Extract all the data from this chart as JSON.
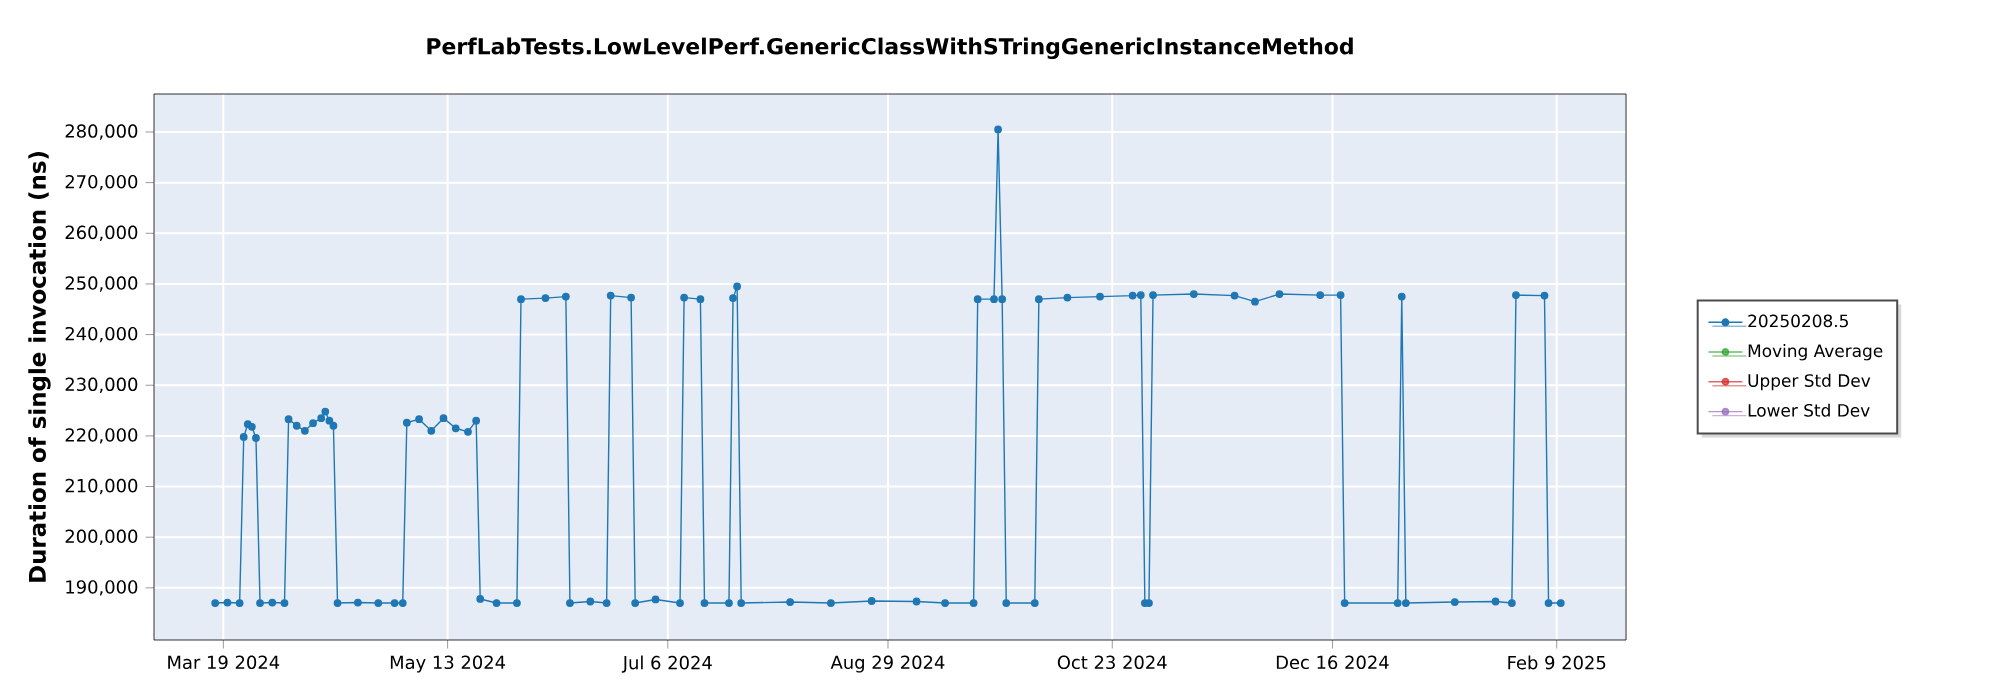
{
  "chart_data": {
    "type": "line",
    "title": "PerfLabTests.LowLevelPerf.GenericClassWithSTringGenericInstanceMethod",
    "ylabel": "Duration of single invocation (ns)",
    "x": [
      "2024-03-17",
      "2024-03-20",
      "2024-03-23",
      "2024-03-24",
      "2024-03-25",
      "2024-03-26",
      "2024-03-27",
      "2024-03-28",
      "2024-03-31",
      "2024-04-03",
      "2024-04-04",
      "2024-04-06",
      "2024-04-08",
      "2024-04-10",
      "2024-04-12",
      "2024-04-13",
      "2024-04-14",
      "2024-04-15",
      "2024-04-16",
      "2024-04-21",
      "2024-04-26",
      "2024-04-30",
      "2024-05-02",
      "2024-05-03",
      "2024-05-06",
      "2024-05-09",
      "2024-05-12",
      "2024-05-15",
      "2024-05-18",
      "2024-05-20",
      "2024-05-21",
      "2024-05-25",
      "2024-05-30",
      "2024-05-31",
      "2024-06-06",
      "2024-06-11",
      "2024-06-12",
      "2024-06-17",
      "2024-06-21",
      "2024-06-22",
      "2024-06-27",
      "2024-06-28",
      "2024-07-03",
      "2024-07-09",
      "2024-07-10",
      "2024-07-14",
      "2024-07-15",
      "2024-07-21",
      "2024-07-22",
      "2024-07-23",
      "2024-07-24",
      "2024-08-05",
      "2024-08-15",
      "2024-08-25",
      "2024-09-05",
      "2024-09-12",
      "2024-09-19",
      "2024-09-20",
      "2024-09-24",
      "2024-09-25",
      "2024-09-26",
      "2024-09-27",
      "2024-10-04",
      "2024-10-05",
      "2024-10-12",
      "2024-10-20",
      "2024-10-28",
      "2024-10-30",
      "2024-10-31",
      "2024-11-01",
      "2024-11-02",
      "2024-11-12",
      "2024-11-22",
      "2024-11-27",
      "2024-12-03",
      "2024-12-13",
      "2024-12-18",
      "2024-12-19",
      "2025-01-01",
      "2025-01-02",
      "2025-01-03",
      "2025-01-15",
      "2025-01-25",
      "2025-01-29",
      "2025-01-30",
      "2025-02-06",
      "2025-02-07",
      "2025-02-10"
    ],
    "series": [
      {
        "name": "20250208.5",
        "color": "#1f77b4",
        "values": [
          187000,
          187100,
          187000,
          219800,
          222300,
          221800,
          219600,
          187000,
          187100,
          187000,
          223300,
          222000,
          221000,
          222500,
          223500,
          224800,
          223000,
          222000,
          187000,
          187100,
          187000,
          187000,
          187000,
          222600,
          223300,
          221000,
          223500,
          221500,
          220800,
          223000,
          187800,
          187000,
          187000,
          247000,
          247200,
          247500,
          187000,
          187300,
          187000,
          247700,
          247300,
          187000,
          187700,
          187000,
          247300,
          247000,
          187000,
          187000,
          247200,
          249500,
          187000,
          187200,
          187000,
          187400,
          187300,
          187000,
          187000,
          247000,
          247000,
          280500,
          247000,
          187000,
          187000,
          247000,
          247300,
          247500,
          247700,
          247800,
          187000,
          187000,
          247800,
          248000,
          247700,
          246500,
          248000,
          247800,
          247800,
          187000,
          187000,
          247500,
          187000,
          187200,
          187300,
          187000,
          247800,
          247700,
          187000,
          187000
        ]
      },
      {
        "name": "Moving Average",
        "color": "#2ca02c",
        "values": [
          null,
          null,
          null,
          null,
          null,
          null,
          null,
          null,
          null,
          null,
          null,
          null,
          null,
          null,
          null,
          null,
          null,
          null,
          null,
          null,
          null,
          null,
          null,
          null,
          null,
          null,
          null,
          null,
          null,
          null,
          null,
          null,
          null,
          null,
          null,
          null,
          null,
          null,
          null,
          null,
          null,
          null,
          null,
          null,
          null,
          null,
          null,
          null,
          null,
          null,
          null,
          null,
          null,
          null,
          null,
          null,
          null,
          null,
          null,
          null,
          null,
          null,
          null,
          null,
          null,
          null,
          null,
          null,
          null,
          null,
          null,
          null,
          null,
          null,
          null,
          null,
          null,
          null,
          null,
          null,
          null,
          null,
          null,
          null,
          null,
          null,
          null,
          null
        ]
      },
      {
        "name": "Upper Std Dev",
        "color": "#d62728",
        "values": [
          null,
          null,
          null,
          null,
          null,
          null,
          null,
          null,
          null,
          null,
          null,
          null,
          null,
          null,
          null,
          null,
          null,
          null,
          null,
          null,
          null,
          null,
          null,
          null,
          null,
          null,
          null,
          null,
          null,
          null,
          null,
          null,
          null,
          null,
          null,
          null,
          null,
          null,
          null,
          null,
          null,
          null,
          null,
          null,
          null,
          null,
          null,
          null,
          null,
          null,
          null,
          null,
          null,
          null,
          null,
          null,
          null,
          null,
          null,
          null,
          null,
          null,
          null,
          null,
          null,
          null,
          null,
          null,
          null,
          null,
          null,
          null,
          null,
          null,
          null,
          null,
          null,
          null,
          null,
          null,
          null,
          null,
          null,
          null,
          null,
          null,
          null,
          null
        ]
      },
      {
        "name": "Lower Std Dev",
        "color": "#9467bd",
        "values": [
          null,
          null,
          null,
          null,
          null,
          null,
          null,
          null,
          null,
          null,
          null,
          null,
          null,
          null,
          null,
          null,
          null,
          null,
          null,
          null,
          null,
          null,
          null,
          null,
          null,
          null,
          null,
          null,
          null,
          null,
          null,
          null,
          null,
          null,
          null,
          null,
          null,
          null,
          null,
          null,
          null,
          null,
          null,
          null,
          null,
          null,
          null,
          null,
          null,
          null,
          null,
          null,
          null,
          null,
          null,
          null,
          null,
          null,
          null,
          null,
          null,
          null,
          null,
          null,
          null,
          null,
          null,
          null,
          null,
          null,
          null,
          null,
          null,
          null,
          null,
          null,
          null,
          null,
          null,
          null,
          null,
          null,
          null,
          null,
          null,
          null,
          null,
          null
        ]
      }
    ],
    "xlim": [
      "2024-03-02",
      "2025-02-26"
    ],
    "xticks": [
      {
        "value": "2024-03-19",
        "label": "Mar 19 2024"
      },
      {
        "value": "2024-05-13",
        "label": "May 13 2024"
      },
      {
        "value": "2024-07-06",
        "label": "Jul 6 2024"
      },
      {
        "value": "2024-08-29",
        "label": "Aug 29 2024"
      },
      {
        "value": "2024-10-23",
        "label": "Oct 23 2024"
      },
      {
        "value": "2024-12-16",
        "label": "Dec 16 2024"
      },
      {
        "value": "2025-02-09",
        "label": "Feb 9 2025"
      }
    ],
    "ylim": [
      179700,
      287500
    ],
    "yticks": [
      {
        "value": 190000,
        "label": "190,000"
      },
      {
        "value": 200000,
        "label": "200,000"
      },
      {
        "value": 210000,
        "label": "210,000"
      },
      {
        "value": 220000,
        "label": "220,000"
      },
      {
        "value": 230000,
        "label": "230,000"
      },
      {
        "value": 240000,
        "label": "240,000"
      },
      {
        "value": 250000,
        "label": "250,000"
      },
      {
        "value": 260000,
        "label": "260,000"
      },
      {
        "value": 270000,
        "label": "270,000"
      },
      {
        "value": 280000,
        "label": "280,000"
      }
    ],
    "grid": true,
    "legend": "right",
    "marker": "circle",
    "line_style": "solid"
  }
}
